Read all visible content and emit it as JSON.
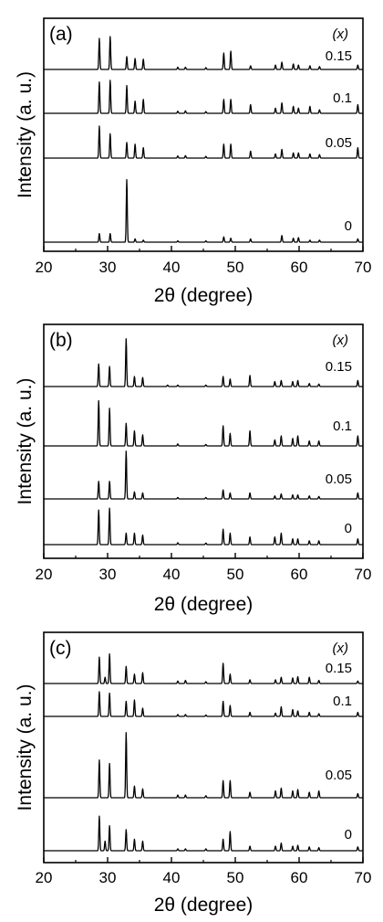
{
  "chart_data": [
    {
      "type": "line",
      "panel_label": "(a)",
      "xlabel": "2θ (degree)",
      "ylabel": "Intensity (a. u.)",
      "xlim": [
        20,
        70
      ],
      "xticks": [
        "20",
        "30",
        "40",
        "50",
        "60",
        "70"
      ],
      "legend_title": "(x)",
      "grid": false,
      "series": [
        {
          "name": "0.15",
          "peaks": [
            [
              28.7,
              0.85
            ],
            [
              30.4,
              0.9
            ],
            [
              33.0,
              0.35
            ],
            [
              34.3,
              0.3
            ],
            [
              35.6,
              0.28
            ],
            [
              41.0,
              0.06
            ],
            [
              42.2,
              0.06
            ],
            [
              45.4,
              0.05
            ],
            [
              48.2,
              0.45
            ],
            [
              49.3,
              0.5
            ],
            [
              52.4,
              0.1
            ],
            [
              56.3,
              0.12
            ],
            [
              57.3,
              0.2
            ],
            [
              59.1,
              0.15
            ],
            [
              59.9,
              0.12
            ],
            [
              61.7,
              0.1
            ],
            [
              63.2,
              0.08
            ],
            [
              69.2,
              0.12
            ]
          ]
        },
        {
          "name": "0.1",
          "peaks": [
            [
              28.7,
              0.9
            ],
            [
              30.4,
              0.95
            ],
            [
              33.0,
              0.8
            ],
            [
              34.3,
              0.35
            ],
            [
              35.6,
              0.4
            ],
            [
              41.0,
              0.06
            ],
            [
              42.2,
              0.07
            ],
            [
              45.4,
              0.05
            ],
            [
              48.2,
              0.4
            ],
            [
              49.3,
              0.4
            ],
            [
              52.4,
              0.25
            ],
            [
              56.3,
              0.15
            ],
            [
              57.3,
              0.3
            ],
            [
              59.1,
              0.2
            ],
            [
              59.9,
              0.15
            ],
            [
              61.7,
              0.2
            ],
            [
              63.2,
              0.1
            ],
            [
              69.2,
              0.25
            ]
          ]
        },
        {
          "name": "0.05",
          "peaks": [
            [
              28.7,
              0.92
            ],
            [
              30.4,
              0.7
            ],
            [
              33.0,
              0.45
            ],
            [
              34.3,
              0.4
            ],
            [
              35.6,
              0.3
            ],
            [
              41.0,
              0.06
            ],
            [
              42.2,
              0.07
            ],
            [
              45.4,
              0.05
            ],
            [
              48.2,
              0.4
            ],
            [
              49.3,
              0.4
            ],
            [
              52.4,
              0.2
            ],
            [
              56.3,
              0.12
            ],
            [
              57.3,
              0.25
            ],
            [
              59.1,
              0.15
            ],
            [
              59.9,
              0.15
            ],
            [
              61.7,
              0.12
            ],
            [
              63.2,
              0.1
            ],
            [
              69.2,
              0.3
            ]
          ]
        },
        {
          "name": "0",
          "peaks": [
            [
              28.7,
              0.13
            ],
            [
              30.4,
              0.13
            ],
            [
              33.0,
              0.95
            ],
            [
              34.3,
              0.05
            ],
            [
              35.6,
              0.03
            ],
            [
              41.0,
              0.02
            ],
            [
              45.4,
              0.02
            ],
            [
              48.2,
              0.08
            ],
            [
              49.3,
              0.06
            ],
            [
              52.4,
              0.05
            ],
            [
              57.3,
              0.1
            ],
            [
              59.1,
              0.06
            ],
            [
              59.9,
              0.07
            ],
            [
              61.7,
              0.03
            ],
            [
              63.2,
              0.03
            ],
            [
              69.2,
              0.05
            ]
          ]
        }
      ]
    },
    {
      "type": "line",
      "panel_label": "(b)",
      "xlabel": "2θ (degree)",
      "ylabel": "Intensity (a. u.)",
      "xlim": [
        20,
        70
      ],
      "xticks": [
        "20",
        "30",
        "40",
        "50",
        "60",
        "70"
      ],
      "legend_title": "(x)",
      "grid": false,
      "series": [
        {
          "name": "0.15",
          "peaks": [
            [
              28.6,
              0.45
            ],
            [
              30.3,
              0.4
            ],
            [
              32.9,
              0.95
            ],
            [
              34.2,
              0.2
            ],
            [
              35.5,
              0.18
            ],
            [
              39.4,
              0.03
            ],
            [
              41.0,
              0.03
            ],
            [
              45.4,
              0.03
            ],
            [
              48.1,
              0.2
            ],
            [
              49.2,
              0.15
            ],
            [
              52.3,
              0.22
            ],
            [
              56.2,
              0.1
            ],
            [
              57.2,
              0.12
            ],
            [
              59.0,
              0.1
            ],
            [
              59.8,
              0.12
            ],
            [
              61.6,
              0.06
            ],
            [
              63.1,
              0.05
            ],
            [
              69.2,
              0.12
            ]
          ]
        },
        {
          "name": "0.1",
          "peaks": [
            [
              28.6,
              0.9
            ],
            [
              30.3,
              0.75
            ],
            [
              32.9,
              0.45
            ],
            [
              34.2,
              0.3
            ],
            [
              35.5,
              0.22
            ],
            [
              41.0,
              0.04
            ],
            [
              45.4,
              0.03
            ],
            [
              48.1,
              0.4
            ],
            [
              49.2,
              0.25
            ],
            [
              52.3,
              0.3
            ],
            [
              56.2,
              0.12
            ],
            [
              57.2,
              0.2
            ],
            [
              59.0,
              0.15
            ],
            [
              59.8,
              0.2
            ],
            [
              61.6,
              0.1
            ],
            [
              63.1,
              0.1
            ],
            [
              69.2,
              0.2
            ]
          ]
        },
        {
          "name": "0.05",
          "peaks": [
            [
              28.6,
              0.35
            ],
            [
              30.3,
              0.35
            ],
            [
              32.9,
              0.95
            ],
            [
              34.2,
              0.14
            ],
            [
              35.5,
              0.12
            ],
            [
              41.0,
              0.03
            ],
            [
              45.4,
              0.03
            ],
            [
              48.1,
              0.18
            ],
            [
              49.2,
              0.12
            ],
            [
              52.3,
              0.12
            ],
            [
              56.2,
              0.06
            ],
            [
              57.2,
              0.1
            ],
            [
              59.0,
              0.08
            ],
            [
              59.8,
              0.08
            ],
            [
              61.6,
              0.06
            ],
            [
              63.1,
              0.05
            ],
            [
              69.2,
              0.12
            ]
          ]
        },
        {
          "name": "0",
          "peaks": [
            [
              28.6,
              0.9
            ],
            [
              30.3,
              0.95
            ],
            [
              32.9,
              0.3
            ],
            [
              34.2,
              0.3
            ],
            [
              35.5,
              0.25
            ],
            [
              41.0,
              0.05
            ],
            [
              45.4,
              0.04
            ],
            [
              48.1,
              0.4
            ],
            [
              49.2,
              0.3
            ],
            [
              52.3,
              0.2
            ],
            [
              56.2,
              0.2
            ],
            [
              57.2,
              0.3
            ],
            [
              59.0,
              0.15
            ],
            [
              59.8,
              0.15
            ],
            [
              61.6,
              0.1
            ],
            [
              63.1,
              0.1
            ],
            [
              69.2,
              0.15
            ]
          ]
        }
      ]
    },
    {
      "type": "line",
      "panel_label": "(c)",
      "xlabel": "2θ (degree)",
      "ylabel": "Intensity (a. u.)",
      "xlim": [
        20,
        70
      ],
      "xticks": [
        "20",
        "30",
        "40",
        "50",
        "60",
        "70"
      ],
      "legend_title": "(x)",
      "grid": false,
      "series": [
        {
          "name": "0.15",
          "peaks": [
            [
              28.7,
              0.85
            ],
            [
              29.6,
              0.2
            ],
            [
              30.3,
              0.95
            ],
            [
              32.9,
              0.55
            ],
            [
              34.2,
              0.3
            ],
            [
              35.5,
              0.35
            ],
            [
              41.0,
              0.08
            ],
            [
              42.2,
              0.1
            ],
            [
              45.4,
              0.06
            ],
            [
              48.1,
              0.65
            ],
            [
              49.2,
              0.3
            ],
            [
              52.3,
              0.12
            ],
            [
              56.3,
              0.12
            ],
            [
              57.2,
              0.2
            ],
            [
              59.0,
              0.18
            ],
            [
              59.8,
              0.22
            ],
            [
              61.6,
              0.2
            ],
            [
              63.1,
              0.1
            ],
            [
              69.2,
              0.08
            ]
          ]
        },
        {
          "name": "0.1",
          "peaks": [
            [
              28.7,
              0.9
            ],
            [
              30.3,
              0.85
            ],
            [
              32.9,
              0.55
            ],
            [
              34.2,
              0.6
            ],
            [
              35.5,
              0.3
            ],
            [
              41.0,
              0.07
            ],
            [
              42.2,
              0.07
            ],
            [
              45.4,
              0.05
            ],
            [
              48.1,
              0.55
            ],
            [
              49.2,
              0.4
            ],
            [
              52.3,
              0.15
            ],
            [
              56.3,
              0.12
            ],
            [
              57.2,
              0.35
            ],
            [
              59.0,
              0.25
            ],
            [
              59.8,
              0.2
            ],
            [
              61.6,
              0.15
            ],
            [
              63.1,
              0.1
            ],
            [
              69.2,
              0.15
            ]
          ]
        },
        {
          "name": "0.05",
          "peaks": [
            [
              28.7,
              0.55
            ],
            [
              30.3,
              0.5
            ],
            [
              32.9,
              0.95
            ],
            [
              34.2,
              0.17
            ],
            [
              35.5,
              0.13
            ],
            [
              41.0,
              0.04
            ],
            [
              42.2,
              0.04
            ],
            [
              45.4,
              0.03
            ],
            [
              48.1,
              0.25
            ],
            [
              49.2,
              0.25
            ],
            [
              52.3,
              0.08
            ],
            [
              56.3,
              0.1
            ],
            [
              57.2,
              0.14
            ],
            [
              59.0,
              0.1
            ],
            [
              59.8,
              0.12
            ],
            [
              61.6,
              0.08
            ],
            [
              63.1,
              0.1
            ],
            [
              69.2,
              0.06
            ]
          ]
        },
        {
          "name": "0",
          "peaks": [
            [
              28.7,
              0.9
            ],
            [
              29.6,
              0.25
            ],
            [
              30.3,
              0.65
            ],
            [
              32.9,
              0.55
            ],
            [
              34.2,
              0.3
            ],
            [
              35.5,
              0.25
            ],
            [
              41.0,
              0.05
            ],
            [
              42.2,
              0.05
            ],
            [
              45.4,
              0.05
            ],
            [
              48.1,
              0.3
            ],
            [
              49.2,
              0.5
            ],
            [
              52.3,
              0.12
            ],
            [
              56.3,
              0.12
            ],
            [
              57.2,
              0.2
            ],
            [
              59.0,
              0.12
            ],
            [
              59.8,
              0.14
            ],
            [
              61.6,
              0.1
            ],
            [
              63.1,
              0.08
            ],
            [
              69.2,
              0.1
            ]
          ]
        }
      ]
    }
  ]
}
